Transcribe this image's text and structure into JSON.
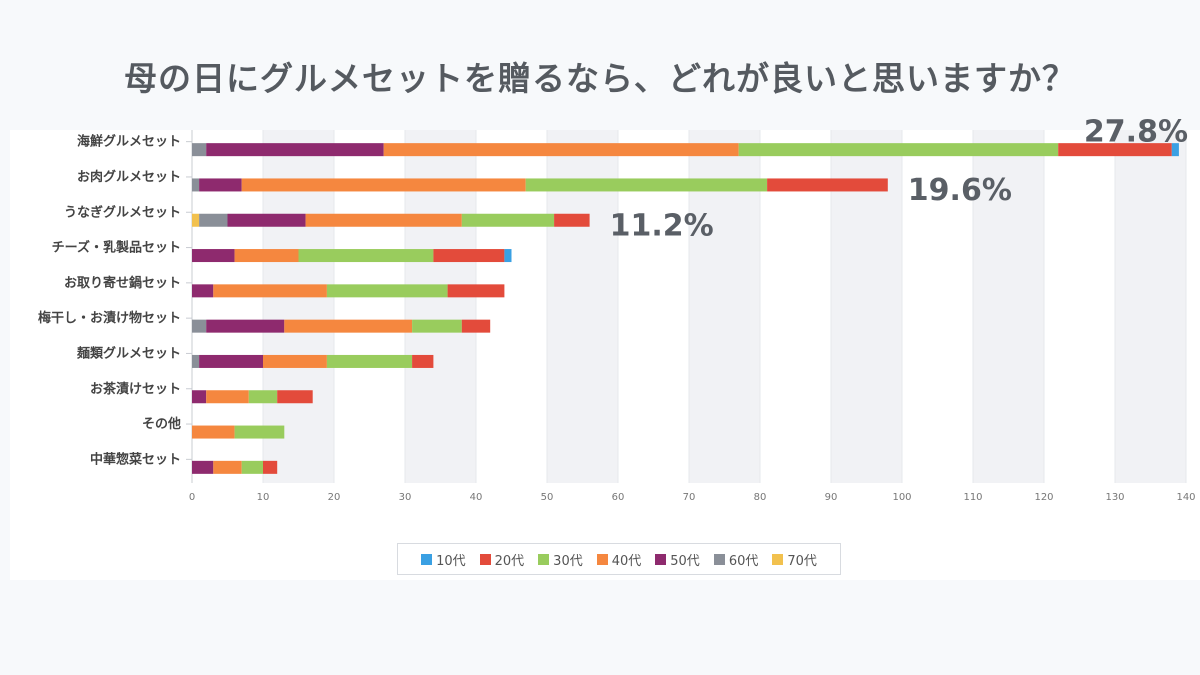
{
  "title": "母の日にグルメセットを贈るなら、どれが良いと思いますか？",
  "chart_data": {
    "type": "bar",
    "orientation": "horizontal",
    "stacked": true,
    "categories": [
      "海鮮グルメセット",
      "お肉グルメセット",
      "うなぎグルメセット",
      "チーズ・乳製品セット",
      "お取り寄せ鍋セット",
      "梅干し・お漬け物セット",
      "麺類グルメセット",
      "お茶漬けセット",
      "その他",
      "中華惣菜セット"
    ],
    "series": [
      {
        "name": "70代",
        "color": "#f2c14e",
        "values": [
          0,
          0,
          1,
          0,
          0,
          0,
          0,
          0,
          0,
          0
        ]
      },
      {
        "name": "60代",
        "color": "#8a8f98",
        "values": [
          2,
          1,
          4,
          0,
          0,
          2,
          1,
          0,
          0,
          0
        ]
      },
      {
        "name": "50代",
        "color": "#8e2a6e",
        "values": [
          25,
          6,
          11,
          6,
          3,
          11,
          9,
          2,
          0,
          3
        ]
      },
      {
        "name": "40代",
        "color": "#f5873f",
        "values": [
          50,
          40,
          22,
          9,
          16,
          18,
          9,
          6,
          6,
          4
        ]
      },
      {
        "name": "30代",
        "color": "#99cc5d",
        "values": [
          45,
          34,
          13,
          19,
          17,
          7,
          12,
          4,
          7,
          3
        ]
      },
      {
        "name": "20代",
        "color": "#e34b3b",
        "values": [
          16,
          17,
          5,
          10,
          8,
          4,
          3,
          5,
          0,
          2
        ]
      },
      {
        "name": "10代",
        "color": "#3aa0e3",
        "values": [
          1,
          0,
          0,
          1,
          0,
          0,
          0,
          0,
          0,
          0
        ]
      }
    ],
    "legend_order": [
      "10代",
      "20代",
      "30代",
      "40代",
      "50代",
      "60代",
      "70代"
    ],
    "xlim": [
      0,
      140
    ],
    "xticks": [
      0,
      10,
      20,
      30,
      40,
      50,
      60,
      70,
      80,
      90,
      100,
      110,
      120,
      130,
      140
    ],
    "annotations": [
      {
        "category_index": 0,
        "text": "27.8%"
      },
      {
        "category_index": 1,
        "text": "19.6%"
      },
      {
        "category_index": 2,
        "text": "11.2%"
      }
    ],
    "legend_position": "bottom",
    "grid": "alternating vertical bands"
  }
}
